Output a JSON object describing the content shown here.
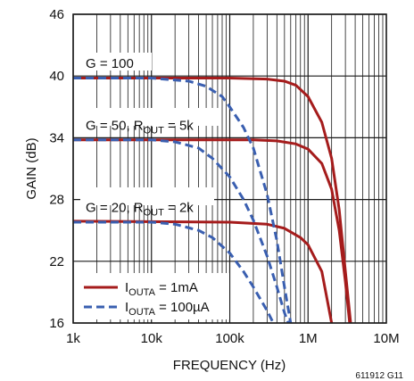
{
  "chart_data": {
    "type": "line",
    "xlabel": "FREQUENCY (Hz)",
    "ylabel": "GAIN (dB)",
    "x_scale": "log",
    "xlim": [
      1000,
      10000000
    ],
    "ylim": [
      16,
      46
    ],
    "x_ticks": [
      "1k",
      "10k",
      "100k",
      "1M",
      "10M"
    ],
    "y_ticks": [
      "16",
      "22",
      "28",
      "34",
      "40",
      "46"
    ],
    "grid": true,
    "figure_id": "611912 G11",
    "colors": {
      "solid": "#a51c1c",
      "dashed": "#3a5fb0",
      "grid": "#1a1a1a"
    },
    "annotations": [
      {
        "main": "G = 100",
        "sub": "",
        "tail": ""
      },
      {
        "main": "G = 50, R",
        "sub": "OUT",
        "tail": " = 5k"
      },
      {
        "main": "G = 20, R",
        "sub": "OUT",
        "tail": " = 2k"
      }
    ],
    "legend": [
      {
        "main": "I",
        "sub": "OUTA",
        "tail": " = 1mA",
        "style": "solid"
      },
      {
        "main": "I",
        "sub": "OUTA",
        "tail": " = 100µA",
        "style": "dashed"
      }
    ],
    "series": [
      {
        "group": "G = 100",
        "style": "solid",
        "points": [
          [
            1000,
            39.8
          ],
          [
            100000,
            39.8
          ],
          [
            300000,
            39.7
          ],
          [
            500000,
            39.5
          ],
          [
            700000,
            39.1
          ],
          [
            1000000,
            38.0
          ],
          [
            1500000,
            35.5
          ],
          [
            2000000,
            32.0
          ],
          [
            2500000,
            27.0
          ],
          [
            3000000,
            21.0
          ],
          [
            3500000,
            16.0
          ]
        ]
      },
      {
        "group": "G = 50",
        "style": "solid",
        "points": [
          [
            1000,
            33.8
          ],
          [
            200000,
            33.8
          ],
          [
            400000,
            33.7
          ],
          [
            700000,
            33.4
          ],
          [
            1000000,
            32.9
          ],
          [
            1500000,
            31.5
          ],
          [
            2000000,
            29.0
          ],
          [
            2500000,
            25.0
          ],
          [
            3000000,
            20.0
          ],
          [
            3400000,
            16.0
          ]
        ]
      },
      {
        "group": "G = 20",
        "style": "solid",
        "points": [
          [
            1000,
            25.9
          ],
          [
            100000,
            25.8
          ],
          [
            300000,
            25.6
          ],
          [
            500000,
            25.2
          ],
          [
            800000,
            24.3
          ],
          [
            1000000,
            23.6
          ],
          [
            1500000,
            21.0
          ],
          [
            2000000,
            16.0
          ]
        ]
      },
      {
        "group": "G = 100",
        "style": "dashed",
        "points": [
          [
            1000,
            39.8
          ],
          [
            10000,
            39.8
          ],
          [
            30000,
            39.5
          ],
          [
            50000,
            39.0
          ],
          [
            80000,
            38.0
          ],
          [
            100000,
            37.0
          ],
          [
            150000,
            35.0
          ],
          [
            200000,
            33.0
          ],
          [
            300000,
            28.5
          ],
          [
            400000,
            24.0
          ],
          [
            500000,
            19.5
          ],
          [
            600000,
            16.0
          ]
        ]
      },
      {
        "group": "G = 50",
        "style": "dashed",
        "points": [
          [
            1000,
            33.8
          ],
          [
            10000,
            33.8
          ],
          [
            20000,
            33.6
          ],
          [
            40000,
            33.0
          ],
          [
            60000,
            32.0
          ],
          [
            100000,
            30.2
          ],
          [
            150000,
            28.0
          ],
          [
            200000,
            26.0
          ],
          [
            300000,
            22.5
          ],
          [
            400000,
            19.5
          ],
          [
            500000,
            17.0
          ],
          [
            560000,
            16.0
          ]
        ]
      },
      {
        "group": "G = 20",
        "style": "dashed",
        "points": [
          [
            1000,
            25.8
          ],
          [
            10000,
            25.8
          ],
          [
            20000,
            25.6
          ],
          [
            40000,
            25.0
          ],
          [
            60000,
            24.3
          ],
          [
            100000,
            22.8
          ],
          [
            150000,
            21.0
          ],
          [
            200000,
            19.5
          ],
          [
            300000,
            17.2
          ],
          [
            360000,
            16.0
          ]
        ]
      }
    ]
  }
}
